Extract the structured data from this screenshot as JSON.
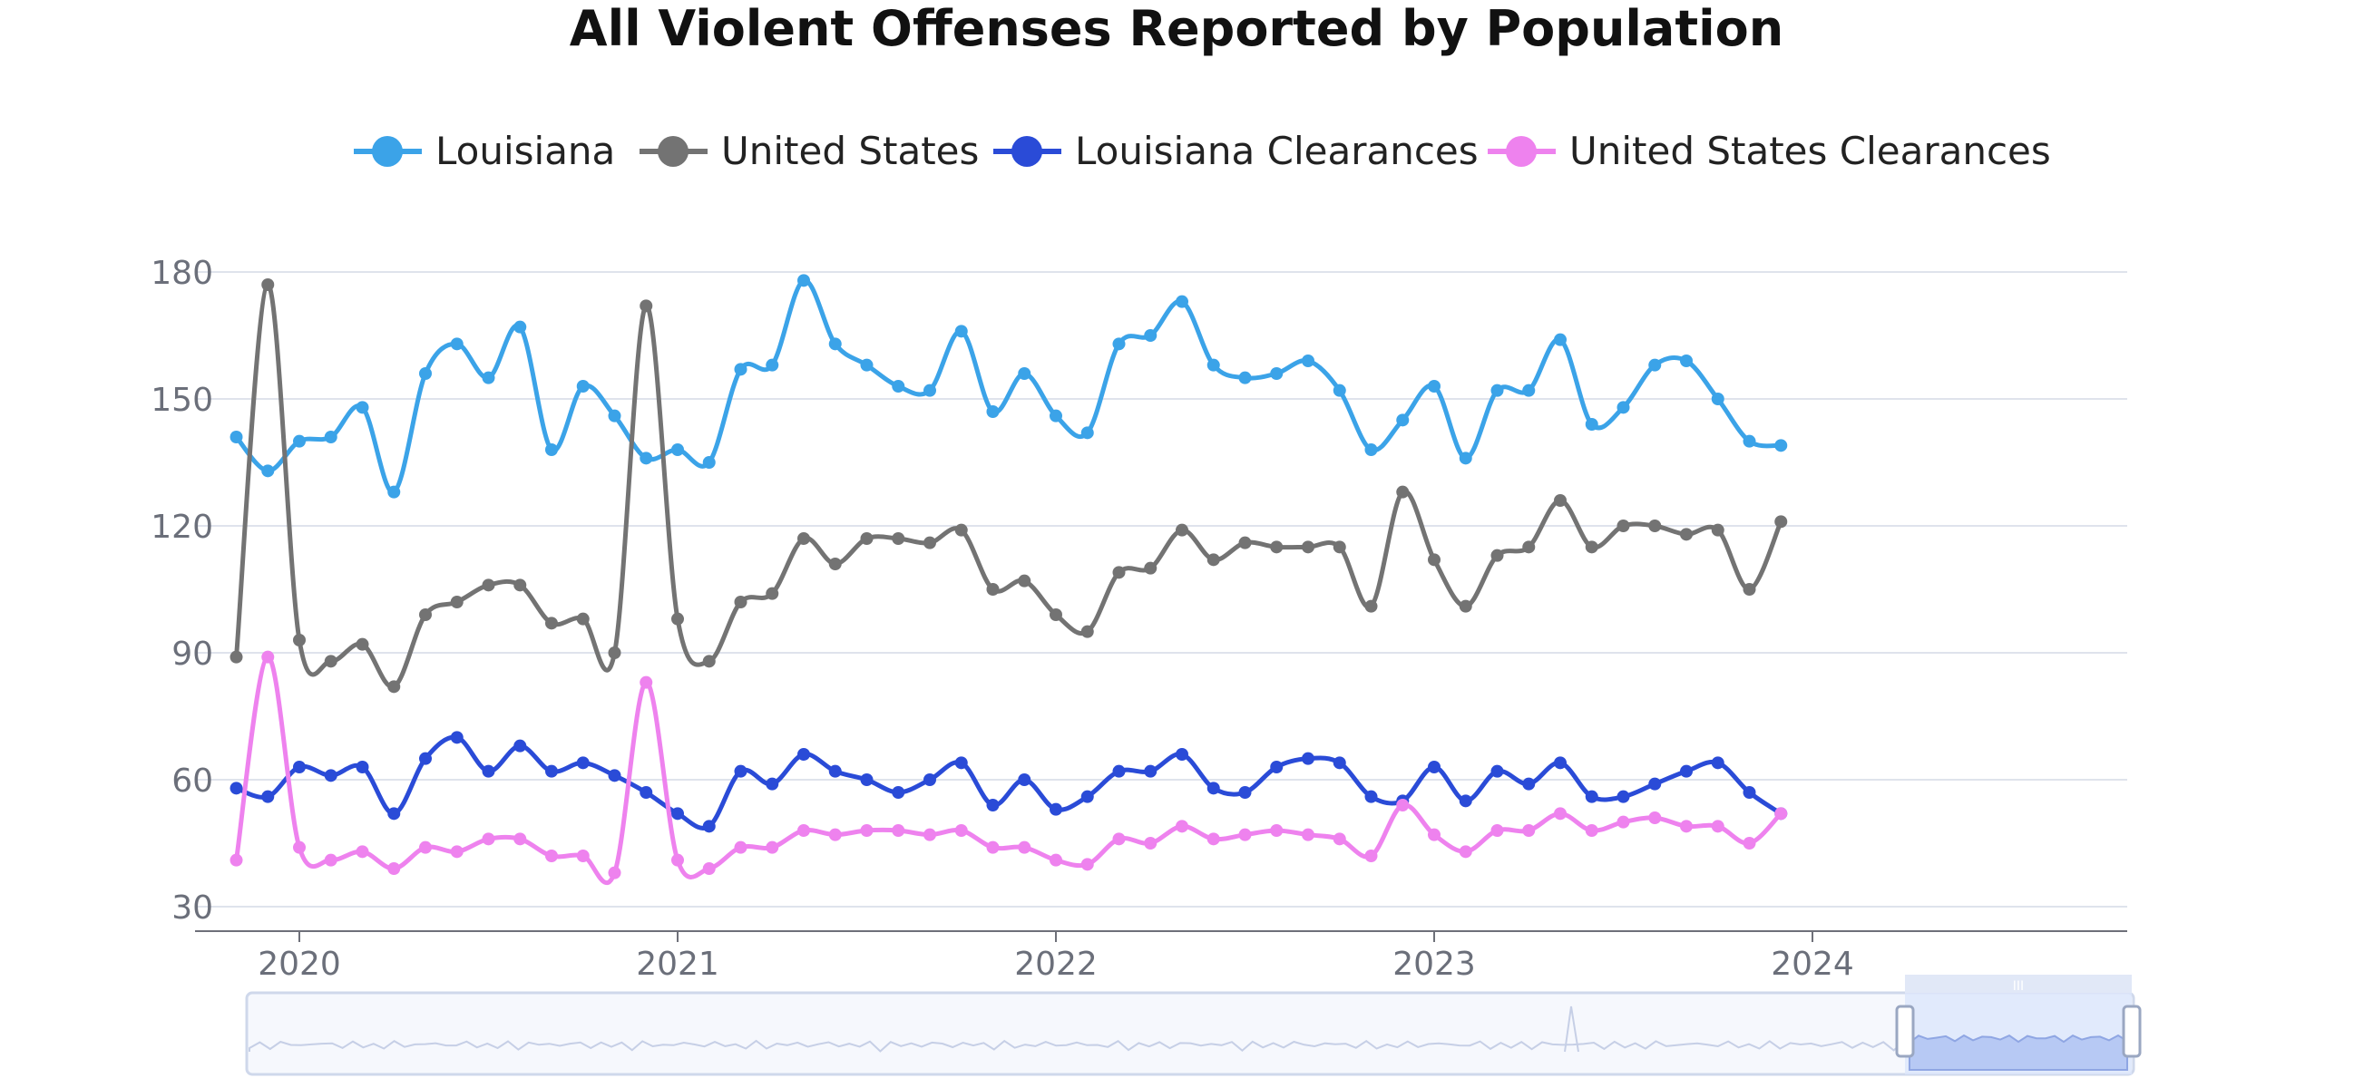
{
  "colors": {
    "louisiana": "#3ba3e8",
    "united_states": "#737373",
    "louisiana_clearances": "#2a4bd7",
    "united_states_clearances": "#ee82ee",
    "grid": "#dfe3ec",
    "axis": "#6e7079",
    "slider_fill": "#dce6fb",
    "slider_border": "#cfd8eb"
  },
  "chart_data": {
    "type": "line",
    "title": "All Violent Offenses Reported by Population",
    "xlabel": "",
    "ylabel": "",
    "ylim": [
      30,
      180
    ],
    "yticks": [
      30,
      60,
      90,
      120,
      150,
      180
    ],
    "xticks": [
      "2020",
      "2021",
      "2022",
      "2023",
      "2024"
    ],
    "legend_position": "top-center",
    "x": [
      "2019-11",
      "2019-12",
      "2020-01",
      "2020-02",
      "2020-03",
      "2020-04",
      "2020-05",
      "2020-06",
      "2020-07",
      "2020-08",
      "2020-09",
      "2020-10",
      "2020-11",
      "2020-12",
      "2021-01",
      "2021-02",
      "2021-03",
      "2021-04",
      "2021-05",
      "2021-06",
      "2021-07",
      "2021-08",
      "2021-09",
      "2021-10",
      "2021-11",
      "2021-12",
      "2022-01",
      "2022-02",
      "2022-03",
      "2022-04",
      "2022-05",
      "2022-06",
      "2022-07",
      "2022-08",
      "2022-09",
      "2022-10",
      "2022-11",
      "2022-12",
      "2023-01",
      "2023-02",
      "2023-03",
      "2023-04",
      "2023-05",
      "2023-06",
      "2023-07",
      "2023-08",
      "2023-09",
      "2023-10",
      "2023-11",
      "2023-12"
    ],
    "series": [
      {
        "name": "Louisiana",
        "color_key": "louisiana",
        "values": [
          141,
          133,
          140,
          141,
          148,
          128,
          156,
          163,
          155,
          167,
          138,
          153,
          146,
          136,
          138,
          135,
          157,
          158,
          178,
          163,
          158,
          153,
          152,
          166,
          147,
          156,
          146,
          142,
          163,
          165,
          173,
          158,
          155,
          156,
          159,
          152,
          138,
          145,
          153,
          136,
          152,
          152,
          164,
          144,
          148,
          158,
          159,
          150,
          140,
          139
        ]
      },
      {
        "name": "United States",
        "color_key": "united_states",
        "values": [
          89,
          177,
          93,
          88,
          92,
          82,
          99,
          102,
          106,
          106,
          97,
          98,
          90,
          172,
          98,
          88,
          102,
          104,
          117,
          111,
          117,
          117,
          116,
          119,
          105,
          107,
          99,
          95,
          109,
          110,
          119,
          112,
          116,
          115,
          115,
          115,
          101,
          128,
          112,
          101,
          113,
          115,
          126,
          115,
          120,
          120,
          118,
          119,
          105,
          121
        ]
      },
      {
        "name": "Louisiana Clearances",
        "color_key": "louisiana_clearances",
        "values": [
          58,
          56,
          63,
          61,
          63,
          52,
          65,
          70,
          62,
          68,
          62,
          64,
          61,
          57,
          52,
          49,
          62,
          59,
          66,
          62,
          60,
          57,
          60,
          64,
          54,
          60,
          53,
          56,
          62,
          62,
          66,
          58,
          57,
          63,
          65,
          64,
          56,
          55,
          63,
          55,
          62,
          59,
          64,
          56,
          56,
          59,
          62,
          64,
          57,
          52
        ]
      },
      {
        "name": "United States Clearances",
        "color_key": "united_states_clearances",
        "values": [
          41,
          89,
          44,
          41,
          43,
          39,
          44,
          43,
          46,
          46,
          42,
          42,
          38,
          83,
          41,
          39,
          44,
          44,
          48,
          47,
          48,
          48,
          47,
          48,
          44,
          44,
          41,
          40,
          46,
          45,
          49,
          46,
          47,
          48,
          47,
          46,
          42,
          54,
          47,
          43,
          48,
          48,
          52,
          48,
          50,
          51,
          49,
          49,
          45,
          52
        ]
      }
    ]
  },
  "slider": {
    "handle_label": "III"
  }
}
